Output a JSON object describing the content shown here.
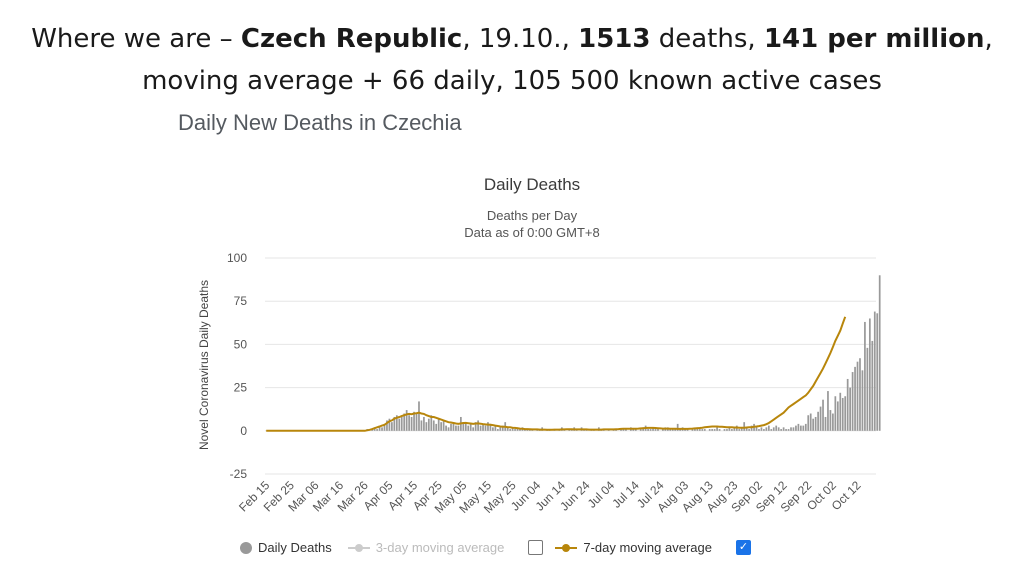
{
  "headline": {
    "line1_pre": "Where we are – ",
    "country": "Czech Republic",
    "date": ", 19.10., ",
    "deaths_value": "1513",
    "deaths_label": " deaths, ",
    "per_million": "141 per million",
    "line1_end": ",",
    "line2": "moving average + 66 daily, 105 500 known active cases"
  },
  "page_subtitle": "Daily New Deaths in Czechia",
  "chart_data": {
    "type": "bar",
    "title": "Daily Deaths",
    "subtitle": [
      "Deaths per Day",
      "Data as of 0:00 GMT+8"
    ],
    "ylabel": "Novel Coronavirus Daily Deaths",
    "xlabel": "",
    "ylim": [
      -25,
      100
    ],
    "yticks": [
      100,
      75,
      50,
      25,
      0,
      -25
    ],
    "xticks": [
      "Feb 15",
      "Feb 25",
      "Mar 06",
      "Mar 16",
      "Mar 26",
      "Apr 05",
      "Apr 15",
      "Apr 25",
      "May 05",
      "May 15",
      "May 25",
      "Jun 04",
      "Jun 14",
      "Jun 24",
      "Jul 04",
      "Jul 14",
      "Jul 24",
      "Aug 03",
      "Aug 13",
      "Aug 23",
      "Sep 02",
      "Sep 12",
      "Sep 22",
      "Oct 02",
      "Oct 12"
    ],
    "start_date": "Feb 15",
    "num_days": 248,
    "series": [
      {
        "name": "Daily Deaths",
        "type": "bar",
        "color": "#999999",
        "values": [
          0,
          0,
          0,
          0,
          0,
          0,
          0,
          0,
          0,
          0,
          0,
          0,
          0,
          0,
          0,
          0,
          0,
          0,
          0,
          0,
          0,
          0,
          0,
          0,
          0,
          0,
          0,
          0,
          0,
          0,
          0,
          0,
          0,
          0,
          0,
          0,
          0,
          0,
          0,
          0,
          0,
          1,
          0,
          1,
          2,
          1,
          3,
          2,
          4,
          6,
          7,
          5,
          8,
          9,
          7,
          8,
          10,
          12,
          9,
          8,
          11,
          10,
          17,
          6,
          8,
          5,
          7,
          9,
          6,
          4,
          7,
          5,
          6,
          3,
          2,
          4,
          5,
          3,
          3,
          8,
          4,
          5,
          3,
          4,
          2,
          5,
          6,
          3,
          4,
          3,
          5,
          4,
          2,
          3,
          1,
          2,
          3,
          5,
          2,
          1,
          2,
          1,
          2,
          1,
          2,
          1,
          1,
          1,
          1,
          0,
          1,
          1,
          2,
          0,
          1,
          1,
          0,
          1,
          0,
          1,
          2,
          1,
          0,
          1,
          1,
          2,
          1,
          0,
          2,
          1,
          1,
          0,
          1,
          1,
          0,
          2,
          1,
          1,
          0,
          1,
          0,
          1,
          1,
          0,
          1,
          1,
          1,
          0,
          2,
          1,
          1,
          0,
          1,
          2,
          3,
          1,
          1,
          2,
          1,
          1,
          0,
          1,
          2,
          2,
          1,
          1,
          1,
          4,
          1,
          2,
          1,
          1,
          0,
          1,
          1,
          2,
          1,
          1,
          1,
          0,
          1,
          1,
          1,
          2,
          1,
          0,
          1,
          1,
          2,
          1,
          2,
          3,
          1,
          2,
          5,
          2,
          1,
          3,
          4,
          2,
          1,
          2,
          1,
          2,
          3,
          1,
          2,
          3,
          2,
          1,
          2,
          1,
          1,
          2,
          2,
          3,
          4,
          3,
          3,
          4,
          9,
          10,
          7,
          8,
          11,
          14,
          18,
          8,
          23,
          12,
          10,
          20,
          17,
          22,
          19,
          20,
          30,
          25,
          34,
          37,
          40,
          42,
          35,
          63,
          48,
          65,
          52,
          69,
          68,
          90
        ]
      },
      {
        "name": "3-day moving average",
        "type": "line",
        "color": "#cccccc",
        "hidden": true
      },
      {
        "name": "7-day moving average",
        "type": "line",
        "color": "#b8860b",
        "values": [
          0,
          0,
          0,
          0,
          0,
          0,
          0,
          0,
          0,
          0,
          0,
          0,
          0,
          0,
          0,
          0,
          0,
          0,
          0,
          0,
          0,
          0,
          0,
          0,
          0,
          0,
          0,
          0,
          0,
          0,
          0,
          0,
          0,
          0,
          0,
          0,
          0,
          0,
          0,
          0,
          0,
          0.3,
          0.6,
          1,
          1.5,
          2,
          2.5,
          3,
          3.5,
          4.5,
          5.5,
          6,
          7,
          7.5,
          8,
          8.5,
          9,
          9.5,
          9.8,
          9.6,
          10,
          10.2,
          10.5,
          10,
          9.8,
          9,
          8.5,
          8,
          8,
          7.5,
          7,
          6.5,
          6,
          5.5,
          5,
          4.8,
          4.5,
          4.2,
          4,
          4.3,
          4.5,
          4.6,
          4.4,
          4.2,
          4,
          4.2,
          4.3,
          4.1,
          3.9,
          3.7,
          3.6,
          3.5,
          3.3,
          3,
          2.8,
          2.5,
          2.4,
          2.3,
          2.1,
          2,
          1.8,
          1.7,
          1.5,
          1.3,
          1.2,
          1,
          1,
          0.9,
          0.8,
          0.8,
          0.8,
          0.7,
          0.7,
          0.7,
          0.6,
          0.6,
          0.6,
          0.7,
          0.7,
          0.7,
          0.8,
          0.8,
          0.9,
          0.9,
          0.9,
          0.8,
          0.8,
          0.8,
          0.8,
          0.8,
          0.8,
          0.7,
          0.7,
          0.7,
          0.7,
          0.7,
          0.7,
          0.8,
          0.8,
          0.8,
          0.8,
          0.8,
          0.9,
          1,
          1.1,
          1.2,
          1.2,
          1.2,
          1.2,
          1.2,
          1.2,
          1.3,
          1.4,
          1.5,
          1.6,
          1.7,
          1.7,
          1.7,
          1.6,
          1.5,
          1.4,
          1.3,
          1.3,
          1.3,
          1.2,
          1.2,
          1.2,
          1.1,
          1.1,
          1.1,
          1.1,
          1.1,
          1.2,
          1.3,
          1.4,
          1.5,
          1.6,
          1.8,
          2,
          2.2,
          2.4,
          2.5,
          2.5,
          2.5,
          2.4,
          2.3,
          2.2,
          2.1,
          2,
          2,
          1.9,
          1.9,
          1.8,
          1.8,
          1.8,
          1.9,
          2,
          2.1,
          2.3,
          2.5,
          2.7,
          3,
          3.3,
          3.8,
          4.5,
          5.5,
          6.5,
          7.5,
          8.5,
          9.5,
          10.5,
          12,
          13.5,
          14.5,
          15.5,
          16.5,
          17.5,
          18.5,
          19.5,
          20.5,
          22,
          24,
          26,
          28.5,
          31,
          33.5,
          36,
          39,
          42,
          45,
          48.5,
          52,
          55,
          58,
          62,
          66
        ]
      }
    ],
    "legend": [
      {
        "label": "Daily Deaths",
        "checked": null
      },
      {
        "label": "3-day moving average",
        "checked": false
      },
      {
        "label": "7-day moving average",
        "checked": true
      }
    ]
  }
}
